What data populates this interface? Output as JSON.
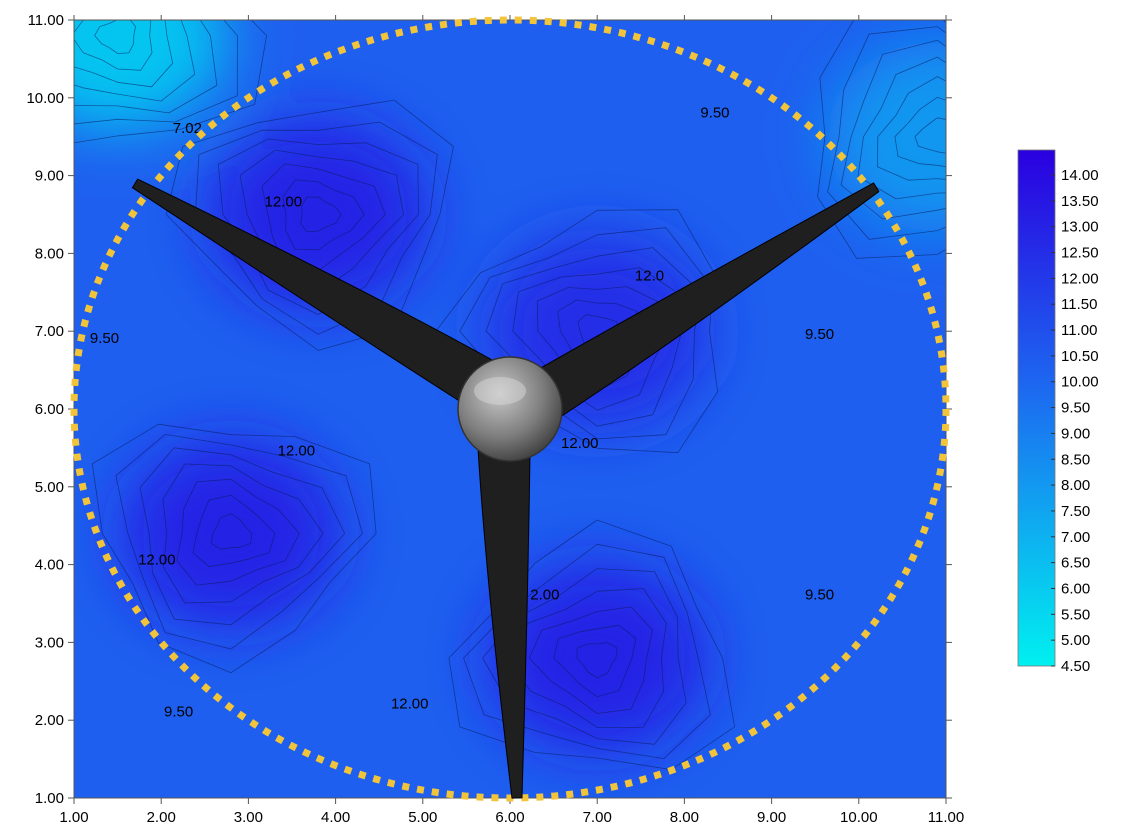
{
  "chart_data": {
    "type": "heatmap",
    "subtype": "filled contour map with rotor overlay",
    "title": "",
    "xlabel": "",
    "ylabel": "",
    "xlim": [
      1.0,
      11.0
    ],
    "ylim": [
      1.0,
      11.0
    ],
    "x_ticks": [
      "1.00",
      "2.00",
      "3.00",
      "4.00",
      "5.00",
      "6.00",
      "7.00",
      "8.00",
      "9.00",
      "10.00",
      "11.00"
    ],
    "y_ticks": [
      "1.00",
      "2.00",
      "3.00",
      "4.00",
      "5.00",
      "6.00",
      "7.00",
      "8.00",
      "9.00",
      "10.00",
      "11.00"
    ],
    "colorbar": {
      "min": 4.5,
      "max": 14.0,
      "step": 0.5,
      "levels": [
        "14.00",
        "13.50",
        "13.00",
        "12.50",
        "12.00",
        "11.50",
        "11.00",
        "10.50",
        "10.00",
        "9.50",
        "9.00",
        "8.50",
        "8.00",
        "7.50",
        "7.00",
        "6.50",
        "6.00",
        "5.50",
        "5.00",
        "4.50"
      ],
      "color_low": "#00f0f0",
      "color_high": "#2a00e0"
    },
    "contour_labels": [
      {
        "text": "7.02",
        "x": 2.3,
        "y": 9.55
      },
      {
        "text": "9.50",
        "x": 8.35,
        "y": 9.75
      },
      {
        "text": "12.00",
        "x": 3.4,
        "y": 8.6
      },
      {
        "text": "12.0",
        "x": 7.6,
        "y": 7.65
      },
      {
        "text": "9.50",
        "x": 1.35,
        "y": 6.85
      },
      {
        "text": "9.50",
        "x": 9.55,
        "y": 6.9
      },
      {
        "text": "12.00",
        "x": 3.55,
        "y": 5.4
      },
      {
        "text": "12.00",
        "x": 6.8,
        "y": 5.5
      },
      {
        "text": "12.00",
        "x": 1.95,
        "y": 4.0
      },
      {
        "text": "2.00",
        "x": 6.4,
        "y": 3.55
      },
      {
        "text": "9.50",
        "x": 9.55,
        "y": 3.55
      },
      {
        "text": "12.00",
        "x": 4.85,
        "y": 2.15
      },
      {
        "text": "9.50",
        "x": 2.2,
        "y": 2.05
      }
    ],
    "field_peaks": [
      {
        "x": 2.8,
        "y": 4.4,
        "value": 13.0
      },
      {
        "x": 3.8,
        "y": 8.5,
        "value": 13.0
      },
      {
        "x": 7.0,
        "y": 7.0,
        "value": 12.5
      },
      {
        "x": 7.0,
        "y": 2.8,
        "value": 13.0
      },
      {
        "x": 1.5,
        "y": 10.8,
        "value": 5.5
      },
      {
        "x": 10.9,
        "y": 9.5,
        "value": 7.5
      }
    ],
    "rotor": {
      "center": [
        6.0,
        6.0
      ],
      "radius": 5.0,
      "outline_color": "#f2c43a",
      "blade_color": "#1f1f1f",
      "hub_color": "#8a8a8a"
    }
  }
}
